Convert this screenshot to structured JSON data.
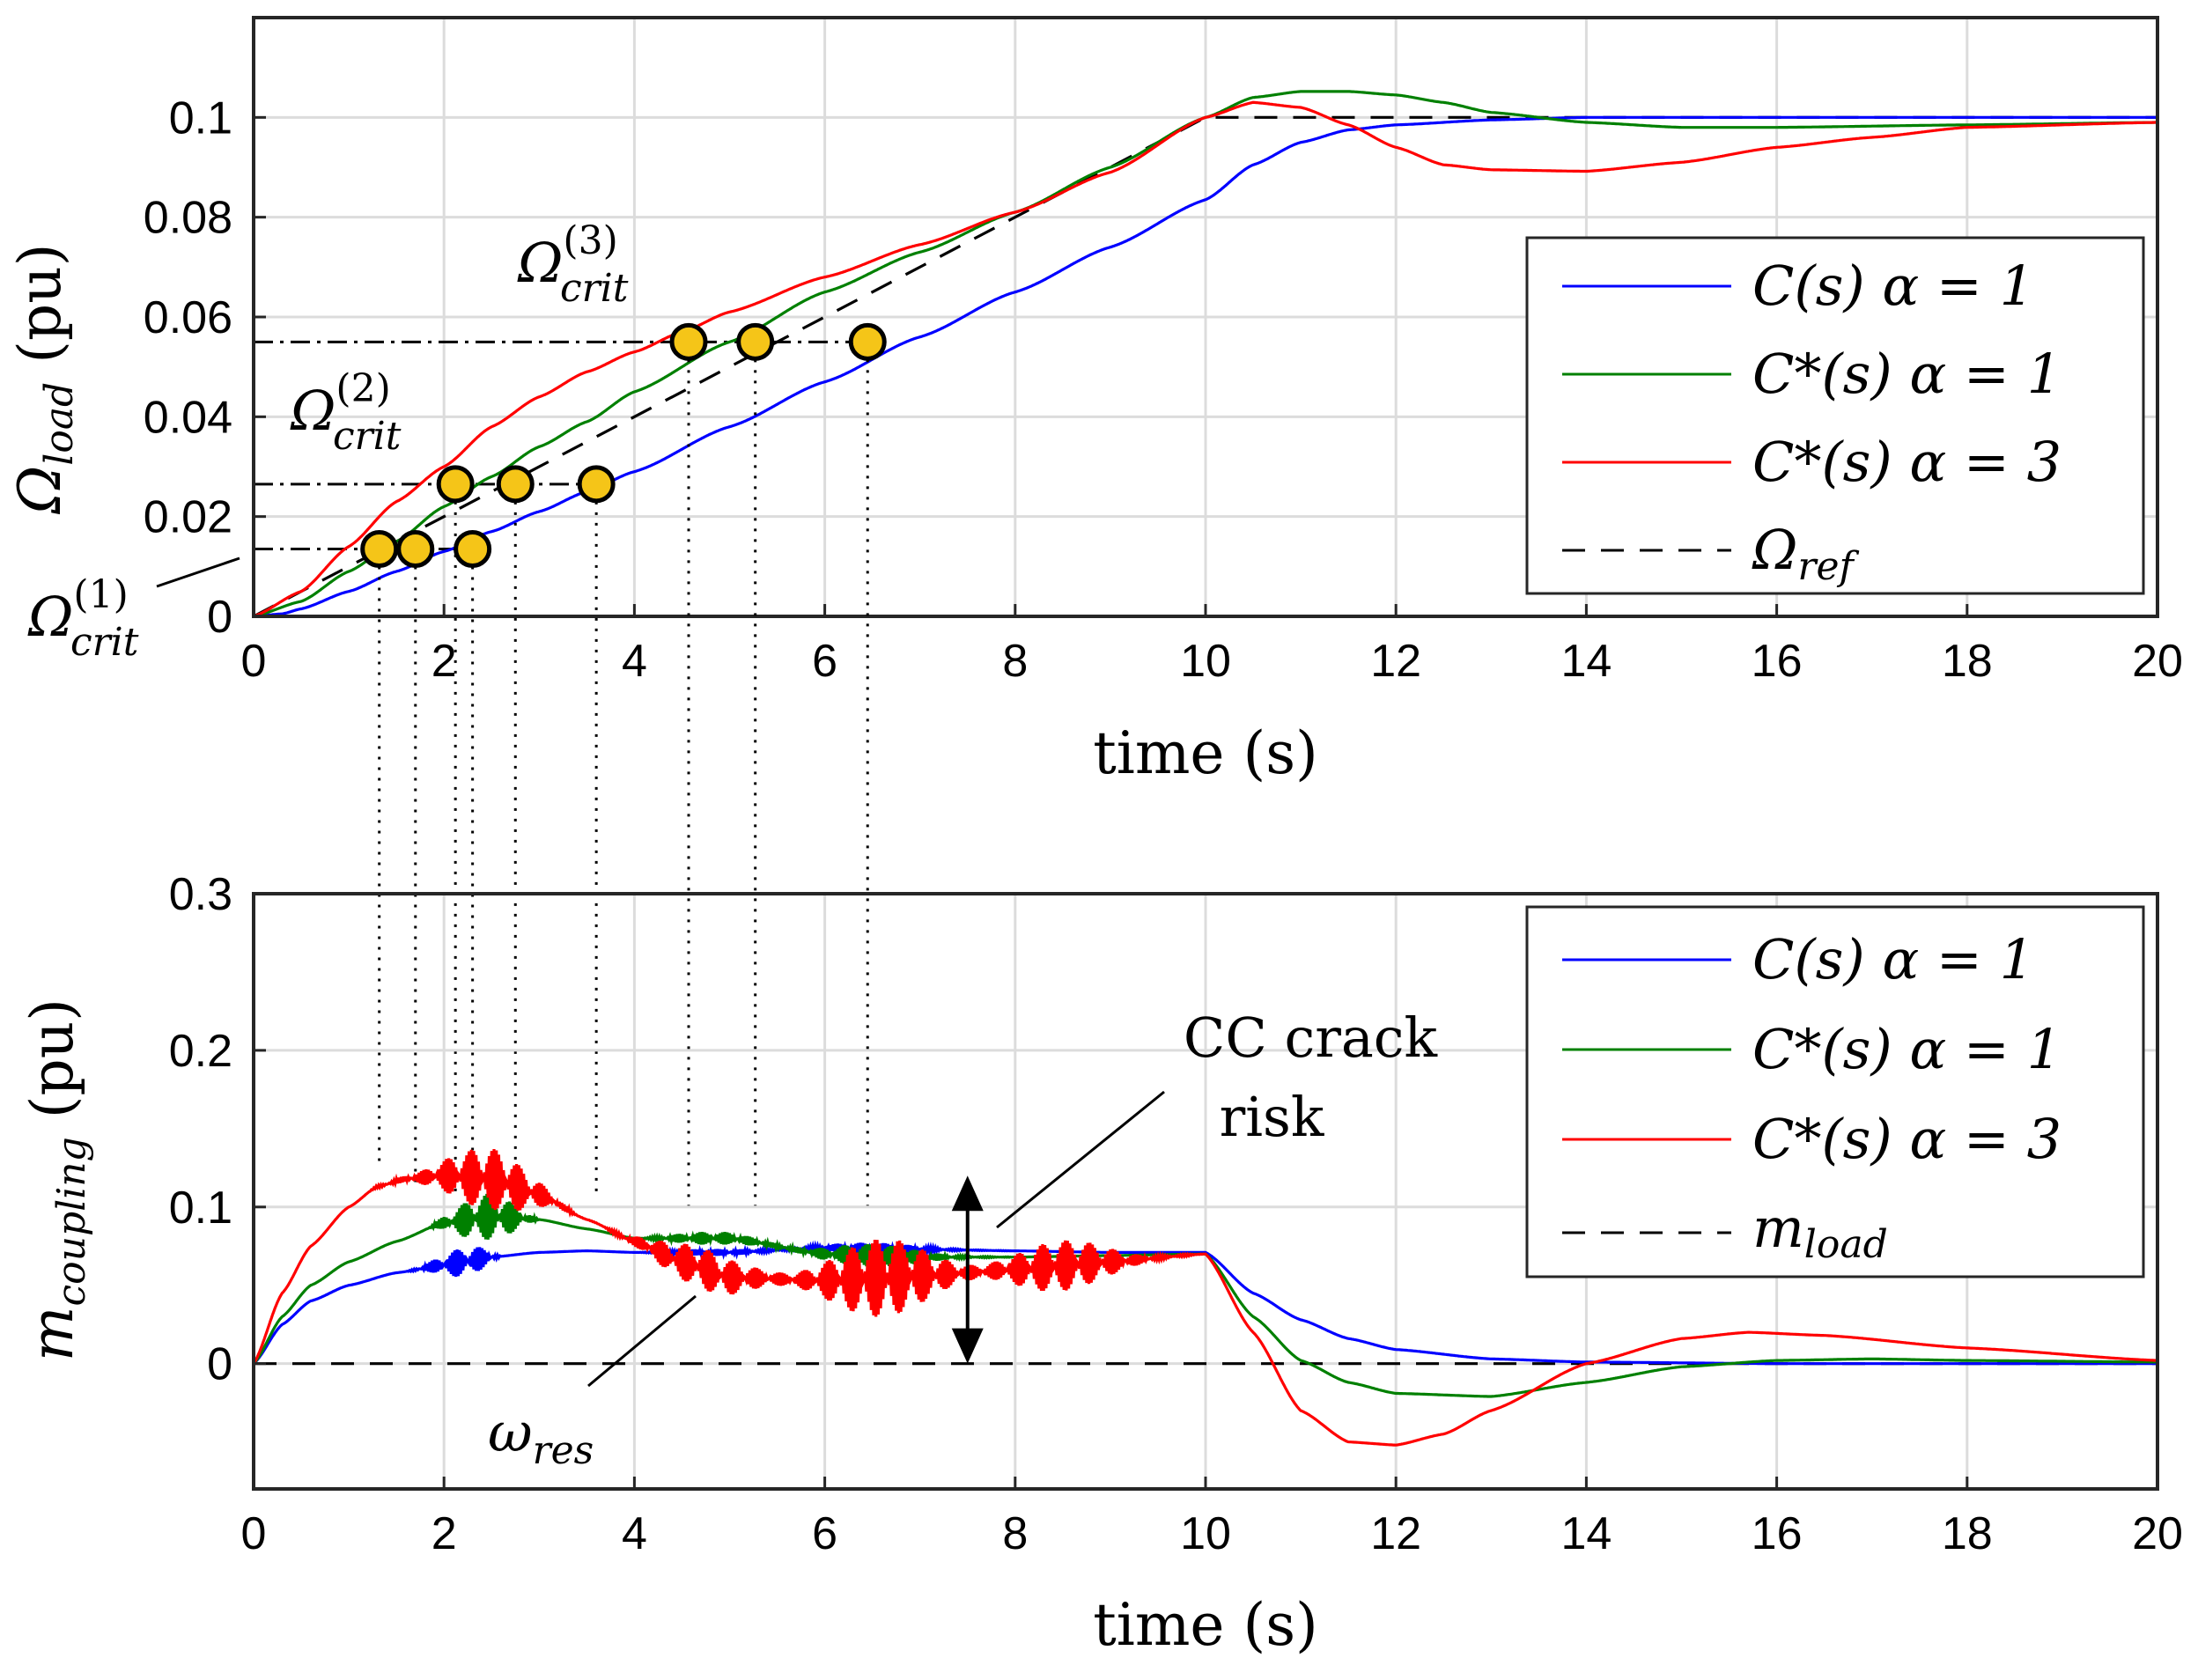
{
  "chart_data": [
    {
      "type": "line",
      "id": "top",
      "xlabel": "time (s)",
      "ylabel_main": "Ω",
      "ylabel_sub": "load",
      "ylabel_unit": " (pu)",
      "xlim": [
        0,
        20
      ],
      "ylim": [
        0,
        0.12
      ],
      "xticks": [
        0,
        2,
        4,
        6,
        8,
        10,
        12,
        14,
        16,
        18,
        20
      ],
      "yticks": [
        0,
        0.02,
        0.04,
        0.06,
        0.08,
        0.1
      ],
      "ytick_labels": [
        "0",
        "0.02",
        "0.04",
        "0.06",
        "0.08",
        "0.1"
      ],
      "series": [
        {
          "name": "C(s)  α = 1",
          "color": "#0000ff",
          "dash": "",
          "x": [
            0,
            0.3,
            0.5,
            1,
            1.5,
            2,
            2.5,
            3,
            3.5,
            4,
            5,
            6,
            7,
            8,
            9,
            10,
            10.5,
            11,
            11.5,
            12,
            13,
            14,
            16,
            18,
            20
          ],
          "y": [
            0,
            0.0005,
            0.0015,
            0.005,
            0.009,
            0.013,
            0.017,
            0.021,
            0.025,
            0.029,
            0.038,
            0.047,
            0.056,
            0.065,
            0.074,
            0.0835,
            0.0905,
            0.095,
            0.0975,
            0.0985,
            0.0995,
            0.1,
            0.1,
            0.1,
            0.1
          ]
        },
        {
          "name": "C*(s) α = 1",
          "color": "#008000",
          "dash": "",
          "x": [
            0,
            0.5,
            1,
            1.5,
            2,
            2.5,
            3,
            3.5,
            4,
            5,
            6,
            7,
            8,
            9,
            10,
            10.5,
            11,
            11.5,
            12,
            12.5,
            13,
            14,
            15,
            16,
            18,
            20
          ],
          "y": [
            0,
            0.003,
            0.009,
            0.015,
            0.022,
            0.028,
            0.034,
            0.039,
            0.045,
            0.055,
            0.065,
            0.073,
            0.081,
            0.09,
            0.1,
            0.104,
            0.1052,
            0.1052,
            0.1045,
            0.103,
            0.101,
            0.099,
            0.098,
            0.098,
            0.0985,
            0.099
          ]
        },
        {
          "name": "C*(s) α = 3",
          "color": "#ff0000",
          "dash": "",
          "x": [
            0,
            0.5,
            1,
            1.5,
            2,
            2.5,
            3,
            3.5,
            4,
            4.5,
            5,
            6,
            7,
            8,
            9,
            10,
            10.5,
            11,
            11.5,
            12,
            12.5,
            13,
            14,
            15,
            16,
            17,
            18,
            20
          ],
          "y": [
            0,
            0.005,
            0.014,
            0.023,
            0.03,
            0.038,
            0.044,
            0.049,
            0.053,
            0.057,
            0.061,
            0.068,
            0.0745,
            0.081,
            0.089,
            0.1,
            0.103,
            0.102,
            0.0985,
            0.094,
            0.0905,
            0.0895,
            0.0892,
            0.091,
            0.094,
            0.096,
            0.098,
            0.099
          ]
        },
        {
          "name": "Ω",
          "sub": "ref",
          "color": "#000000",
          "dash": "26 18",
          "x": [
            0,
            10,
            20
          ],
          "y": [
            0,
            0.1,
            0.1
          ]
        }
      ],
      "legend": [
        "C(s)  α = 1",
        "C*(s) α = 1",
        "C*(s) α = 3",
        "Ω_ref"
      ],
      "legend_position": "right",
      "crit_levels": [
        0.0135,
        0.0265,
        0.055
      ],
      "crit_labels": [
        {
          "main": "Ω",
          "sub": "crit",
          "sup": "(1)"
        },
        {
          "main": "Ω",
          "sub": "crit",
          "sup": "(2)"
        },
        {
          "main": "Ω",
          "sub": "crit",
          "sup": "(3)"
        }
      ],
      "crit_points": [
        {
          "t": 1.32,
          "v": 0.0135
        },
        {
          "t": 1.7,
          "v": 0.0135
        },
        {
          "t": 2.3,
          "v": 0.0135
        },
        {
          "t": 2.12,
          "v": 0.0265
        },
        {
          "t": 2.75,
          "v": 0.0265
        },
        {
          "t": 3.6,
          "v": 0.0265
        },
        {
          "t": 4.57,
          "v": 0.055
        },
        {
          "t": 5.27,
          "v": 0.055
        },
        {
          "t": 6.45,
          "v": 0.055
        }
      ],
      "marker_color": "#f5c518"
    },
    {
      "type": "line",
      "id": "bottom",
      "xlabel": "time (s)",
      "ylabel_main": "m",
      "ylabel_sub": "coupling",
      "ylabel_unit": " (pu)",
      "xlim": [
        0,
        20
      ],
      "ylim": [
        -0.08,
        0.3
      ],
      "xticks": [
        0,
        2,
        4,
        6,
        8,
        10,
        12,
        14,
        16,
        18,
        20
      ],
      "yticks": [
        0,
        0.1,
        0.2,
        0.3
      ],
      "ytick_labels": [
        "0",
        "0.1",
        "0.2",
        "0.3"
      ],
      "series": [
        {
          "name": "C(s)  α = 1",
          "color": "#0000ff",
          "dash": "",
          "x": [
            0,
            0.3,
            0.6,
            1,
            1.5,
            2,
            2.5,
            3,
            3.5,
            4,
            5,
            6,
            7,
            8,
            9,
            10,
            10.5,
            11,
            11.5,
            12,
            13,
            14,
            16,
            18,
            20
          ],
          "y": [
            0,
            0.025,
            0.04,
            0.05,
            0.058,
            0.063,
            0.068,
            0.071,
            0.072,
            0.071,
            0.071,
            0.074,
            0.073,
            0.072,
            0.071,
            0.071,
            0.045,
            0.028,
            0.016,
            0.009,
            0.003,
            0.001,
            0,
            0,
            0
          ],
          "noise": [
            [
              1.6,
              2.6,
              0.012
            ],
            [
              4,
              8,
              0.004
            ]
          ]
        },
        {
          "name": "C*(s) α = 1",
          "color": "#008000",
          "dash": "",
          "x": [
            0,
            0.3,
            0.6,
            1,
            1.5,
            2,
            2.5,
            3,
            3.5,
            4,
            5,
            6,
            7,
            8,
            9,
            10,
            10.5,
            11,
            11.5,
            12,
            13,
            14,
            15,
            16,
            17,
            18,
            20
          ],
          "y": [
            0,
            0.03,
            0.05,
            0.065,
            0.078,
            0.09,
            0.094,
            0.092,
            0.086,
            0.08,
            0.08,
            0.07,
            0.068,
            0.068,
            0.069,
            0.07,
            0.03,
            0.002,
            -0.012,
            -0.019,
            -0.021,
            -0.012,
            -0.002,
            0.002,
            0.003,
            0.002,
            0.001
          ],
          "noise": [
            [
              1.8,
              3,
              0.015
            ],
            [
              4,
              8,
              0.008
            ]
          ]
        },
        {
          "name": "C*(s) α = 3",
          "color": "#ff0000",
          "dash": "",
          "x": [
            0,
            0.3,
            0.6,
            1,
            1.3,
            1.6,
            2,
            2.5,
            3,
            3.5,
            4,
            4.5,
            5,
            6,
            7,
            8,
            9,
            10,
            10.5,
            11,
            11.5,
            12,
            12.5,
            13,
            14,
            15,
            15.7,
            16.5,
            18,
            20
          ],
          "y": [
            0,
            0.045,
            0.075,
            0.1,
            0.113,
            0.118,
            0.12,
            0.118,
            0.108,
            0.092,
            0.078,
            0.065,
            0.055,
            0.053,
            0.056,
            0.06,
            0.065,
            0.07,
            0.02,
            -0.03,
            -0.05,
            -0.052,
            -0.045,
            -0.03,
            0,
            0.016,
            0.02,
            0.018,
            0.01,
            0.002
          ],
          "noise": [
            [
              1.2,
              3.5,
              0.02
            ],
            [
              3.5,
              10,
              0.025
            ]
          ]
        },
        {
          "name": "m",
          "sub": "load",
          "color": "#000000",
          "dash": "26 18",
          "x": [
            0,
            20
          ],
          "y": [
            0,
            0
          ]
        }
      ],
      "legend": [
        "C(s)  α = 1",
        "C*(s) α = 1",
        "C*(s) α = 3",
        "m_load"
      ],
      "legend_position": "right",
      "annotations": {
        "crack_line1": "CC crack",
        "crack_line2": "risk",
        "res_main": "ω",
        "res_sub": "res"
      },
      "arrow_x": 7.5,
      "arrow_range": [
        0,
        0.12
      ]
    }
  ]
}
